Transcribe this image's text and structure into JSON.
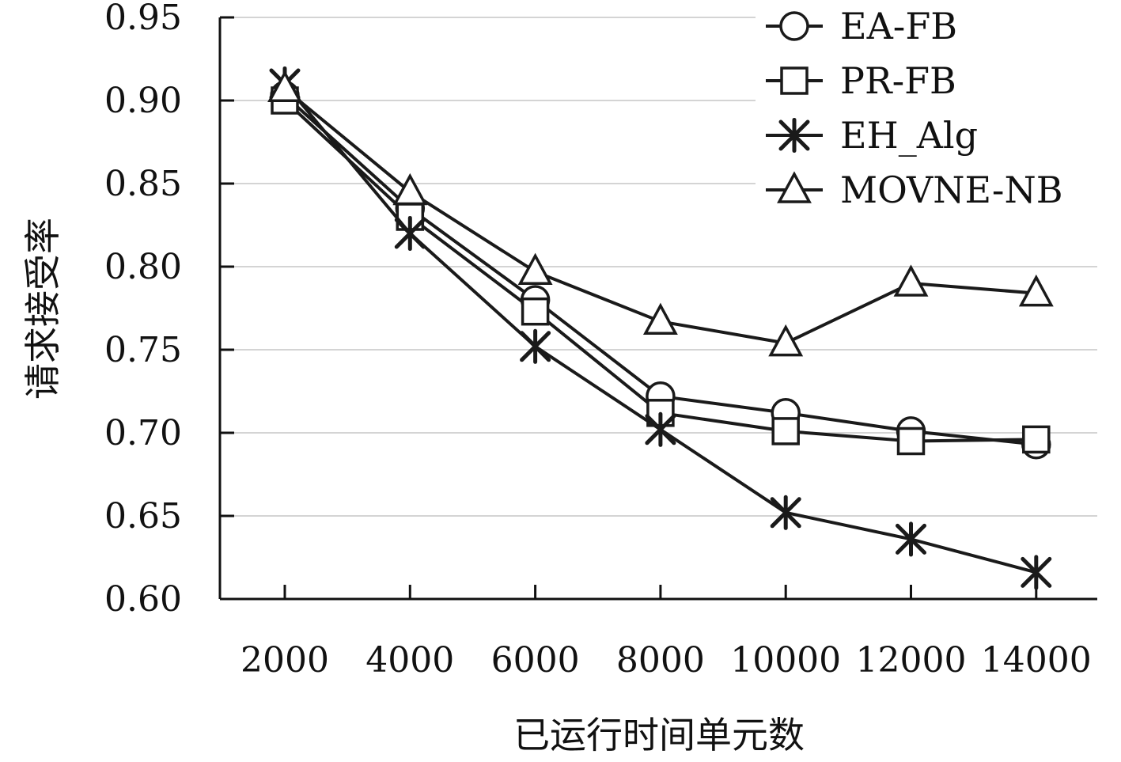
{
  "chart_data": {
    "type": "line",
    "title": "",
    "xlabel": "已运行时间单元数",
    "ylabel": "请求接受率",
    "categories": [
      "2000",
      "4000",
      "6000",
      "8000",
      "10000",
      "12000",
      "14000"
    ],
    "ylim": [
      0.6,
      0.95
    ],
    "yticks": [
      "0.60",
      "0.65",
      "0.70",
      "0.75",
      "0.80",
      "0.85",
      "0.90",
      "0.95"
    ],
    "grid": "horizontal",
    "legend_position": "top-right",
    "series": [
      {
        "name": "EA-FB",
        "marker": "circle",
        "values": [
          0.903,
          0.835,
          0.78,
          0.722,
          0.712,
          0.701,
          0.693
        ]
      },
      {
        "name": "PR-FB",
        "marker": "square",
        "values": [
          0.9,
          0.83,
          0.773,
          0.712,
          0.701,
          0.695,
          0.696
        ]
      },
      {
        "name": "EH_Alg",
        "marker": "asterisk",
        "values": [
          0.91,
          0.82,
          0.752,
          0.702,
          0.652,
          0.636,
          0.616
        ]
      },
      {
        "name": "MOVNE-NB",
        "marker": "triangle",
        "values": [
          0.907,
          0.845,
          0.797,
          0.767,
          0.754,
          0.79,
          0.784
        ]
      }
    ],
    "colors": {
      "line": "#1a1a1a",
      "grid": "#d4d4d4",
      "axis": "#111111"
    }
  }
}
